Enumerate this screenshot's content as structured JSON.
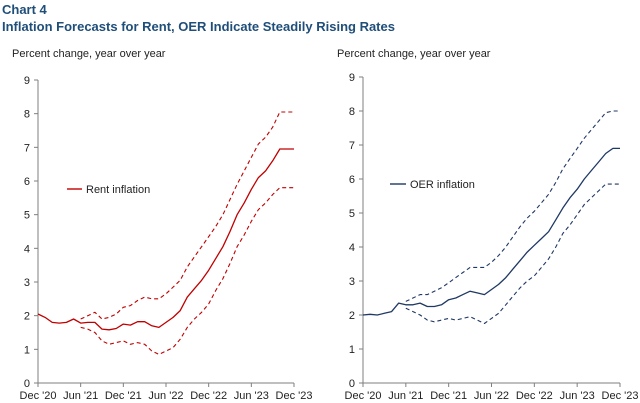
{
  "header": {
    "chart_number": "Chart 4",
    "title": "Inflation Forecasts for Rent, OER Indicate Steadily Rising Rates"
  },
  "chart_data": [
    {
      "type": "line",
      "ylabel": "Percent change, year over year",
      "ylim": [
        0,
        9
      ],
      "yticks": [
        "0",
        "1",
        "2",
        "3",
        "4",
        "5",
        "6",
        "7",
        "8",
        "9"
      ],
      "xlim": [
        0,
        36
      ],
      "xticks": [
        {
          "pos": 0,
          "label": "Dec '20"
        },
        {
          "pos": 6,
          "label": "Jun '21"
        },
        {
          "pos": 12,
          "label": "Dec '21"
        },
        {
          "pos": 18,
          "label": "Jun '22"
        },
        {
          "pos": 24,
          "label": "Dec '22"
        },
        {
          "pos": 30,
          "label": "Jun '23"
        },
        {
          "pos": 36,
          "label": "Dec '23"
        }
      ],
      "grid": false,
      "legend_position": "middle-left",
      "series": [
        {
          "name": "Rent inflation",
          "color": "#c00000",
          "dash": false,
          "legend": true,
          "x": [
            0,
            1,
            2,
            3,
            4,
            5,
            6,
            7,
            8,
            9,
            10,
            11,
            12,
            13,
            14,
            15,
            16,
            17,
            18,
            19,
            20,
            21,
            22,
            23,
            24,
            25,
            26,
            27,
            28,
            29,
            30,
            31,
            32,
            33,
            34,
            35,
            36
          ],
          "y": [
            2.05,
            1.95,
            1.8,
            1.78,
            1.8,
            1.9,
            1.78,
            1.8,
            1.8,
            1.6,
            1.58,
            1.62,
            1.75,
            1.72,
            1.82,
            1.82,
            1.7,
            1.65,
            1.8,
            1.95,
            2.15,
            2.55,
            2.8,
            3.05,
            3.35,
            3.7,
            4.05,
            4.5,
            5.0,
            5.35,
            5.75,
            6.1,
            6.3,
            6.6,
            6.95,
            6.95,
            6.95
          ]
        },
        {
          "name": "Rent upper band",
          "color": "#c00000",
          "dash": true,
          "legend": false,
          "x": [
            6,
            7,
            8,
            9,
            10,
            11,
            12,
            13,
            14,
            15,
            16,
            17,
            18,
            19,
            20,
            21,
            22,
            23,
            24,
            25,
            26,
            27,
            28,
            29,
            30,
            31,
            32,
            33,
            34,
            35,
            36
          ],
          "y": [
            1.9,
            2.0,
            2.1,
            1.9,
            1.95,
            2.05,
            2.25,
            2.3,
            2.45,
            2.55,
            2.5,
            2.5,
            2.65,
            2.85,
            3.05,
            3.45,
            3.75,
            4.05,
            4.35,
            4.65,
            5.0,
            5.45,
            5.9,
            6.3,
            6.7,
            7.1,
            7.3,
            7.6,
            8.05,
            8.05,
            8.05
          ]
        },
        {
          "name": "Rent lower band",
          "color": "#c00000",
          "dash": true,
          "legend": false,
          "x": [
            6,
            7,
            8,
            9,
            10,
            11,
            12,
            13,
            14,
            15,
            16,
            17,
            18,
            19,
            20,
            21,
            22,
            23,
            24,
            25,
            26,
            27,
            28,
            29,
            30,
            31,
            32,
            33,
            34,
            35,
            36
          ],
          "y": [
            1.65,
            1.6,
            1.5,
            1.25,
            1.15,
            1.2,
            1.25,
            1.15,
            1.2,
            1.15,
            0.95,
            0.85,
            0.95,
            1.05,
            1.3,
            1.65,
            1.9,
            2.1,
            2.35,
            2.75,
            3.1,
            3.55,
            4.05,
            4.4,
            4.8,
            5.15,
            5.35,
            5.6,
            5.8,
            5.8,
            5.8
          ]
        }
      ]
    },
    {
      "type": "line",
      "ylabel": "Percent change, year over year",
      "ylim": [
        0,
        9
      ],
      "yticks": [
        "0",
        "1",
        "2",
        "3",
        "4",
        "5",
        "6",
        "7",
        "8",
        "9"
      ],
      "xlim": [
        0,
        36
      ],
      "xticks": [
        {
          "pos": 0,
          "label": "Dec '20"
        },
        {
          "pos": 6,
          "label": "Jun '21"
        },
        {
          "pos": 12,
          "label": "Dec '21"
        },
        {
          "pos": 18,
          "label": "Jun '22"
        },
        {
          "pos": 24,
          "label": "Dec '22"
        },
        {
          "pos": 30,
          "label": "Jun '23"
        },
        {
          "pos": 36,
          "label": "Dec '23"
        }
      ],
      "grid": false,
      "legend_position": "middle-left",
      "series": [
        {
          "name": "OER inflation",
          "color": "#1f3864",
          "dash": false,
          "legend": true,
          "x": [
            0,
            1,
            2,
            3,
            4,
            5,
            6,
            7,
            8,
            9,
            10,
            11,
            12,
            13,
            14,
            15,
            16,
            17,
            18,
            19,
            20,
            21,
            22,
            23,
            24,
            25,
            26,
            27,
            28,
            29,
            30,
            31,
            32,
            33,
            34,
            35,
            36
          ],
          "y": [
            2.0,
            2.02,
            2.0,
            2.05,
            2.1,
            2.35,
            2.3,
            2.3,
            2.35,
            2.25,
            2.25,
            2.3,
            2.45,
            2.5,
            2.6,
            2.7,
            2.65,
            2.6,
            2.75,
            2.9,
            3.1,
            3.35,
            3.6,
            3.85,
            4.05,
            4.25,
            4.45,
            4.8,
            5.15,
            5.45,
            5.7,
            6.0,
            6.25,
            6.5,
            6.75,
            6.9,
            6.9
          ]
        },
        {
          "name": "OER upper band",
          "color": "#1f3864",
          "dash": true,
          "legend": false,
          "x": [
            6,
            7,
            8,
            9,
            10,
            11,
            12,
            13,
            14,
            15,
            16,
            17,
            18,
            19,
            20,
            21,
            22,
            23,
            24,
            25,
            26,
            27,
            28,
            29,
            30,
            31,
            32,
            33,
            34,
            35,
            36
          ],
          "y": [
            2.4,
            2.5,
            2.6,
            2.6,
            2.7,
            2.8,
            2.95,
            3.1,
            3.25,
            3.4,
            3.4,
            3.4,
            3.55,
            3.75,
            4.0,
            4.3,
            4.6,
            4.85,
            5.05,
            5.3,
            5.55,
            5.9,
            6.3,
            6.6,
            6.9,
            7.2,
            7.45,
            7.7,
            7.95,
            8.0,
            8.0
          ]
        },
        {
          "name": "OER lower band",
          "color": "#1f3864",
          "dash": true,
          "legend": false,
          "x": [
            6,
            7,
            8,
            9,
            10,
            11,
            12,
            13,
            14,
            15,
            16,
            17,
            18,
            19,
            20,
            21,
            22,
            23,
            24,
            25,
            26,
            27,
            28,
            29,
            30,
            31,
            32,
            33,
            34,
            35,
            36
          ],
          "y": [
            2.2,
            2.1,
            2.0,
            1.85,
            1.8,
            1.85,
            1.9,
            1.85,
            1.9,
            1.95,
            1.85,
            1.75,
            1.9,
            2.05,
            2.3,
            2.55,
            2.8,
            3.0,
            3.15,
            3.4,
            3.65,
            4.0,
            4.4,
            4.65,
            4.95,
            5.25,
            5.45,
            5.65,
            5.85,
            5.85,
            5.85
          ]
        }
      ]
    }
  ]
}
